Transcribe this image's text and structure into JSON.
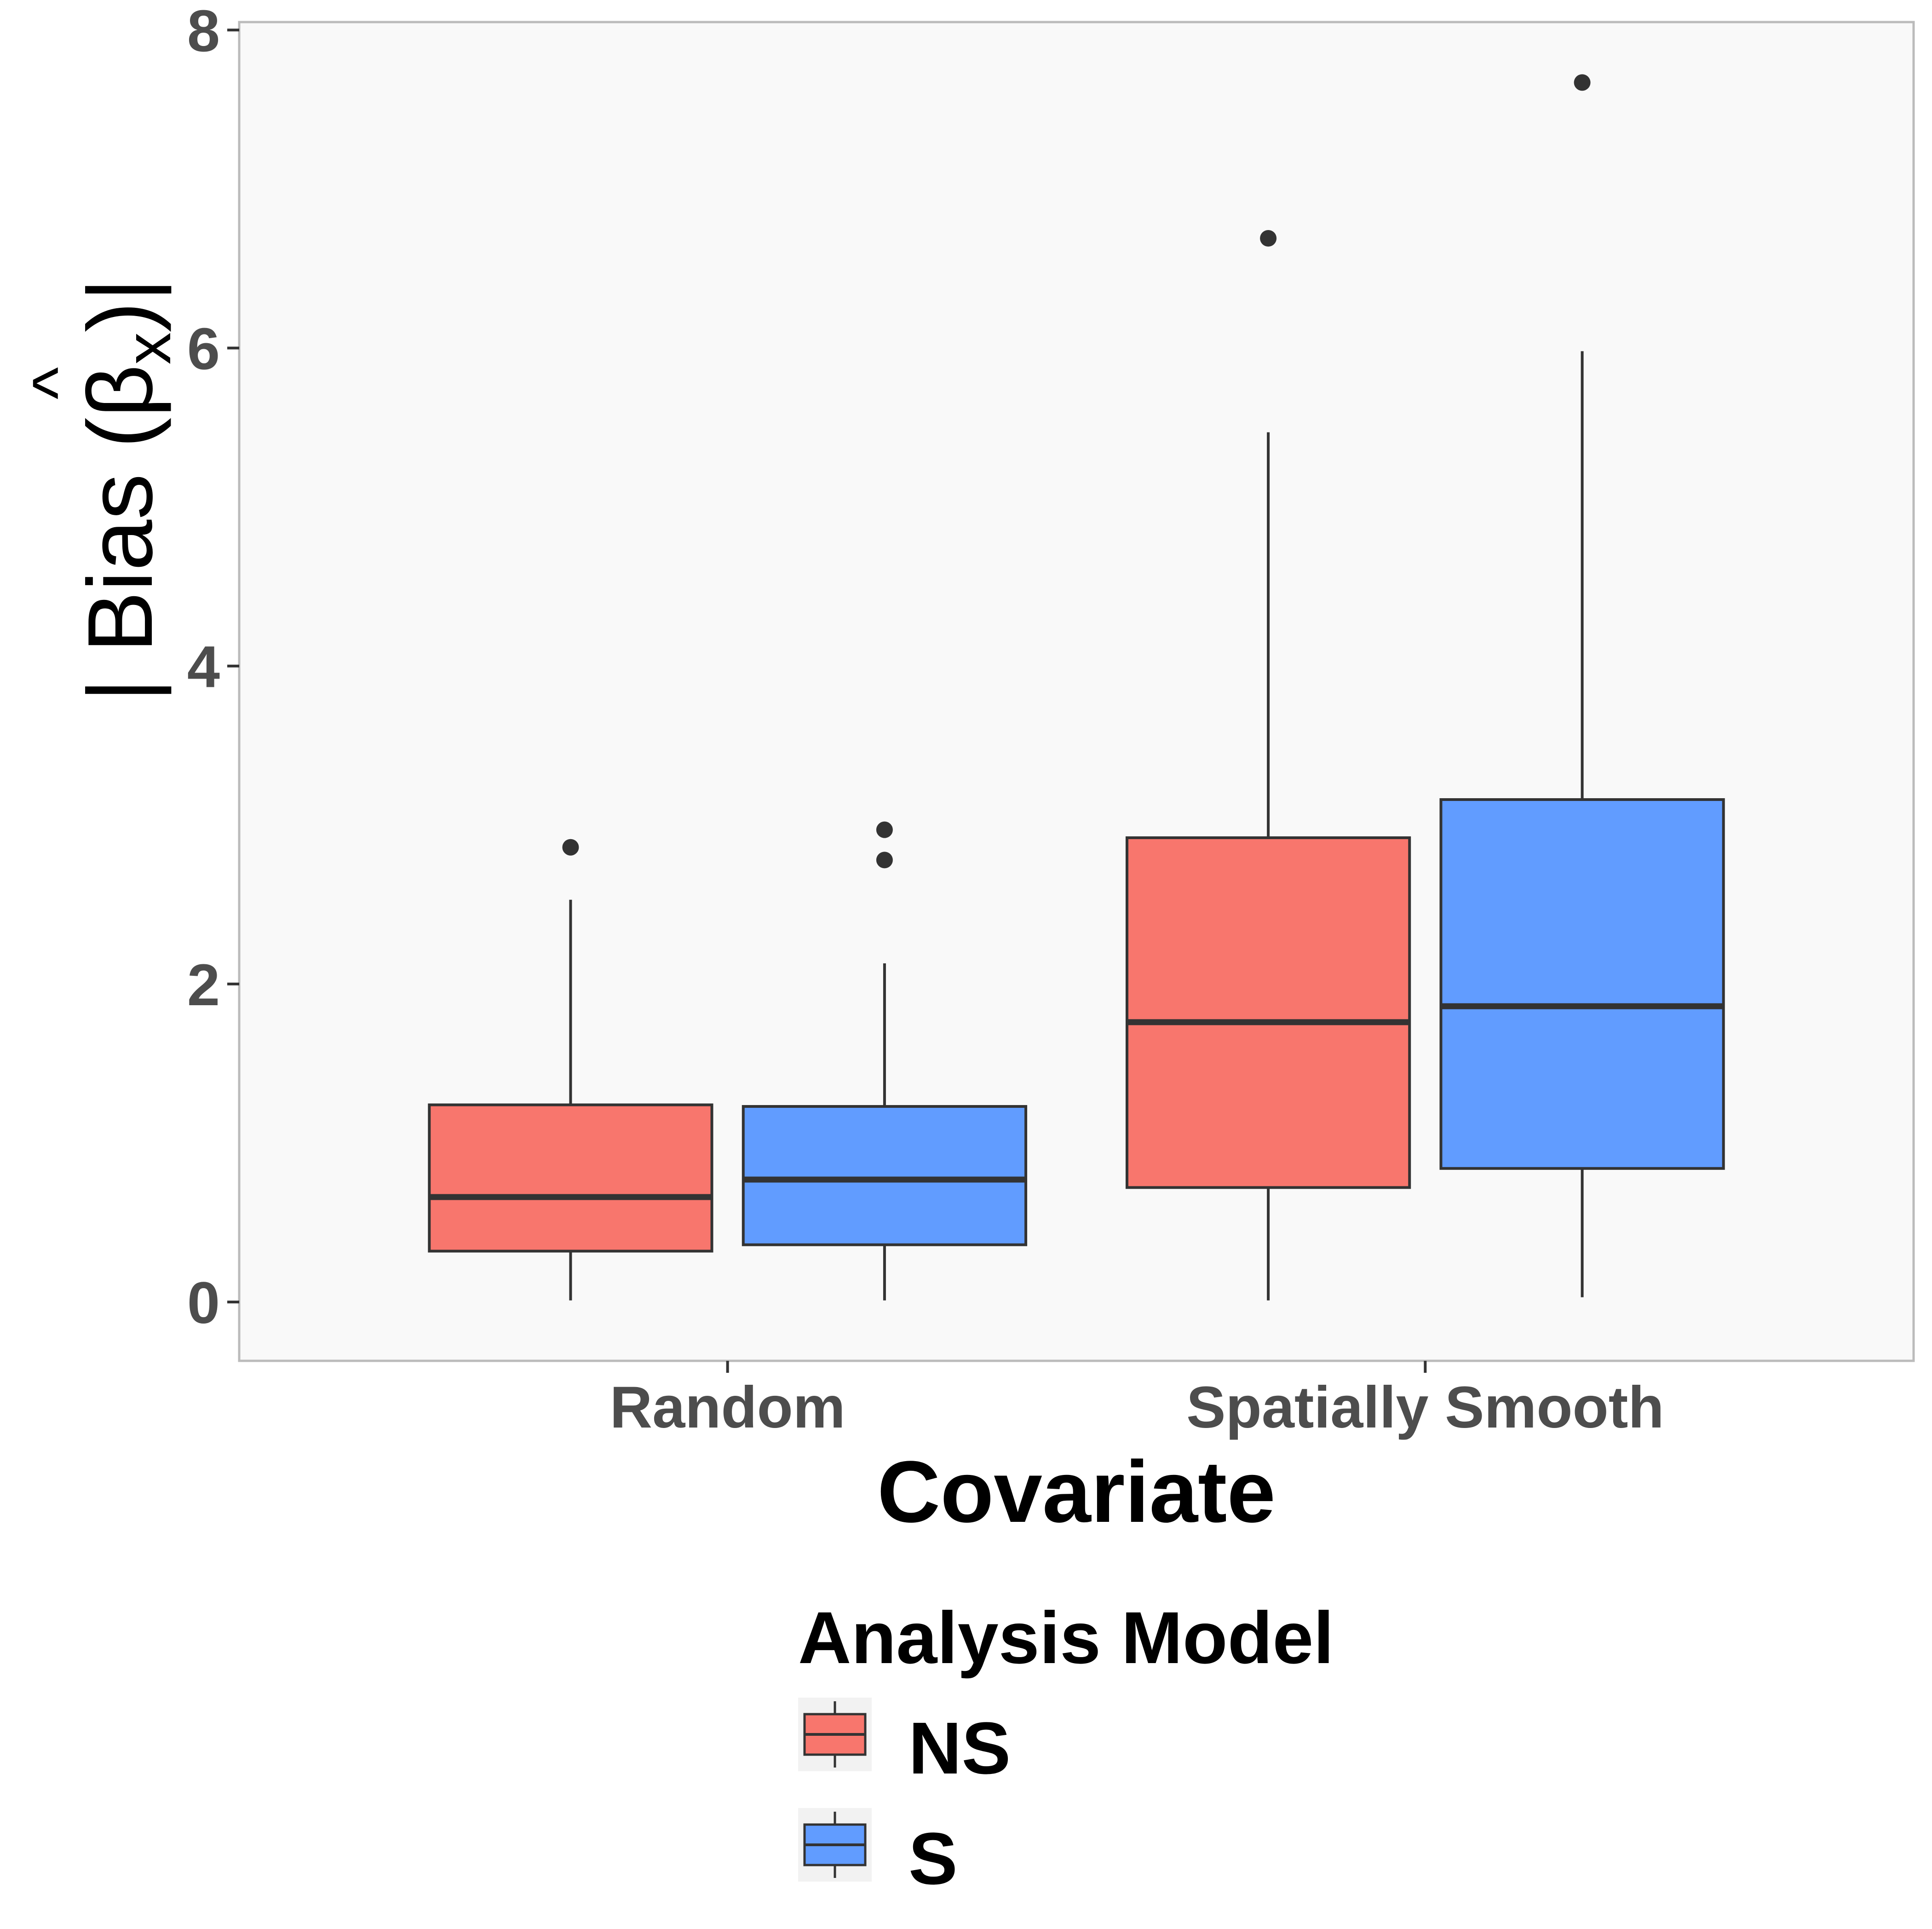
{
  "chart_data": {
    "type": "boxplot",
    "title": "",
    "xlabel": "Covariate",
    "ylabel": {
      "prefix": "| Bias (",
      "symbol": "β",
      "hat": "^",
      "subscript": "x",
      "suffix": ")|"
    },
    "ylim": [
      -0.37,
      8.05
    ],
    "yticks": [
      0,
      2,
      4,
      6,
      8
    ],
    "ytick_labels": [
      "0",
      "2",
      "4",
      "6",
      "8"
    ],
    "categories": [
      "Random",
      "Spatially Smooth"
    ],
    "grid": false,
    "legend": {
      "title": "Analysis Model",
      "position": "bottom",
      "entries": [
        "NS",
        "S"
      ]
    },
    "series": [
      {
        "name": "NS",
        "color": "#F8766D",
        "boxes": [
          {
            "category": "Random",
            "whisker_low": 0.01,
            "q1": 0.32,
            "median": 0.66,
            "q3": 1.24,
            "whisker_high": 2.53,
            "outliers": [
              2.86
            ]
          },
          {
            "category": "Spatially Smooth",
            "whisker_low": 0.01,
            "q1": 0.72,
            "median": 1.76,
            "q3": 2.92,
            "whisker_high": 5.47,
            "outliers": [
              6.69
            ]
          }
        ]
      },
      {
        "name": "S",
        "color": "#619CFF",
        "boxes": [
          {
            "category": "Random",
            "whisker_low": 0.01,
            "q1": 0.36,
            "median": 0.77,
            "q3": 1.23,
            "whisker_high": 2.13,
            "outliers": [
              2.78,
              2.97
            ]
          },
          {
            "category": "Spatially Smooth",
            "whisker_low": 0.03,
            "q1": 0.84,
            "median": 1.86,
            "q3": 3.16,
            "whisker_high": 5.98,
            "outliers": [
              7.67
            ]
          }
        ]
      }
    ]
  }
}
